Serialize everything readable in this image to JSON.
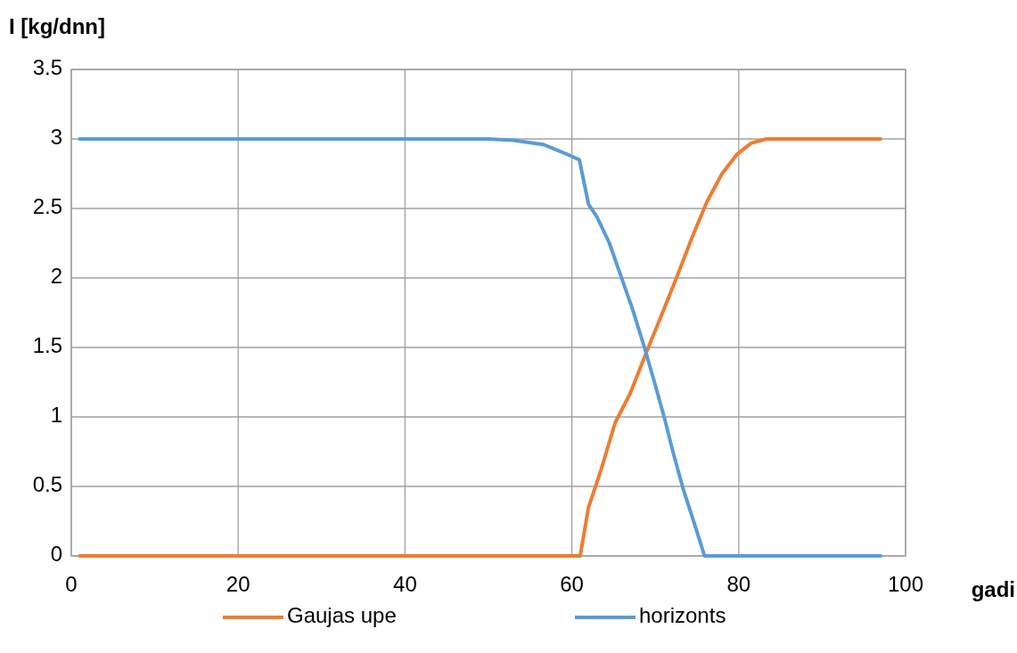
{
  "chart_data": {
    "type": "line",
    "ylabel": "I [kg/dnn]",
    "xlabel": "gadi",
    "xlim": [
      0,
      100
    ],
    "xticks": [
      0,
      20,
      40,
      60,
      80,
      100
    ],
    "ylim": [
      0,
      3.5
    ],
    "yticks": [
      0,
      0.5,
      1,
      1.5,
      2,
      2.5,
      3,
      3.5
    ],
    "grid": true,
    "legend": "bottom",
    "marker": "none",
    "line_style": "solid",
    "series": [
      {
        "name": "Gaujas upe",
        "color": "#ed7d31",
        "x": [
          1,
          20,
          40,
          60,
          61,
          62,
          63.5,
          65.2,
          67,
          68.9,
          70.8,
          72.6,
          74.4,
          76.2,
          78,
          79.8,
          81.5,
          83.3,
          90,
          97
        ],
        "values": [
          0,
          0,
          0,
          0,
          0,
          0.35,
          0.62,
          0.96,
          1.17,
          1.46,
          1.74,
          2.01,
          2.29,
          2.55,
          2.75,
          2.89,
          2.97,
          3,
          3,
          3
        ]
      },
      {
        "name": "horizonts",
        "color": "#5b9bd5",
        "x": [
          1,
          10,
          20,
          30,
          40,
          50,
          53,
          56.6,
          59.8,
          60.9,
          62,
          63,
          64.5,
          65.9,
          67.3,
          68.7,
          69.9,
          71.1,
          72.2,
          73.4,
          74.7,
          75.9,
          77,
          85,
          97
        ],
        "values": [
          3,
          3,
          3,
          3,
          3,
          3,
          2.99,
          2.96,
          2.88,
          2.85,
          2.53,
          2.44,
          2.25,
          2.01,
          1.77,
          1.5,
          1.25,
          0.99,
          0.73,
          0.47,
          0.23,
          0,
          0,
          0,
          0
        ]
      }
    ]
  }
}
